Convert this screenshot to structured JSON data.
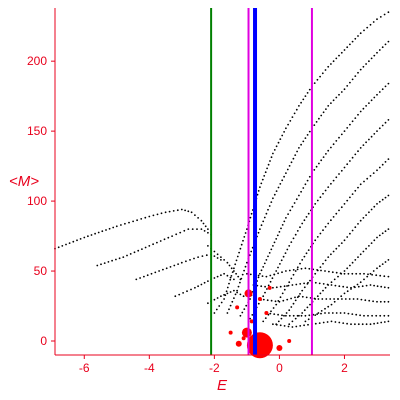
{
  "chart_data": {
    "type": "scatter",
    "xlabel": "E",
    "ylabel": "<M>",
    "xlim": [
      -6.9,
      3.4
    ],
    "ylim": [
      -10,
      238
    ],
    "x_ticks": [
      -6,
      -4,
      -2,
      0,
      2
    ],
    "y_ticks": [
      0,
      50,
      100,
      150,
      200
    ],
    "grid": false,
    "axis_color": "#e8001c",
    "point_color": "#000000",
    "marker_color": "#ff0000",
    "series": [
      {
        "x": [
          -6.9,
          -6.0,
          -5.0,
          -4.0,
          -3.5,
          -3.0,
          -2.7,
          -2.4,
          -2.2
        ],
        "y": [
          66,
          74,
          82,
          89,
          92,
          94,
          92,
          86,
          80
        ]
      },
      {
        "x": [
          -5.6,
          -4.8,
          -4.0,
          -3.3,
          -2.8,
          -2.4,
          -2.1
        ],
        "y": [
          54,
          60,
          68,
          75,
          80,
          80,
          76
        ]
      },
      {
        "x": [
          -4.4,
          -3.7,
          -3.0,
          -2.5,
          -2.1,
          -1.8
        ],
        "y": [
          44,
          50,
          56,
          60,
          62,
          58
        ]
      },
      {
        "x": [
          -3.2,
          -2.6,
          -2.1,
          -1.7,
          -1.4
        ],
        "y": [
          32,
          38,
          44,
          48,
          44
        ]
      },
      {
        "x": [
          -2.2,
          -1.8,
          -1.4,
          -1.1
        ],
        "y": [
          27,
          32,
          36,
          32
        ]
      },
      {
        "x": [
          -2.0,
          -1.7,
          -1.4,
          -1.0,
          -0.6,
          -0.2,
          0.2,
          0.6,
          1.0,
          1.5,
          2.0,
          2.5,
          3.0,
          3.35
        ],
        "y": [
          20,
          30,
          52,
          80,
          110,
          134,
          152,
          168,
          182,
          196,
          208,
          220,
          230,
          235
        ]
      },
      {
        "x": [
          -1.6,
          -1.3,
          -1.0,
          -0.6,
          -0.2,
          0.2,
          0.6,
          1.0,
          1.5,
          2.0,
          2.5,
          3.0,
          3.35
        ],
        "y": [
          20,
          36,
          56,
          80,
          102,
          120,
          138,
          152,
          168,
          180,
          194,
          206,
          214
        ]
      },
      {
        "x": [
          -1.2,
          -0.9,
          -0.6,
          -0.2,
          0.2,
          0.6,
          1.0,
          1.5,
          2.0,
          2.5,
          3.0,
          3.35
        ],
        "y": [
          18,
          30,
          48,
          68,
          88,
          104,
          120,
          136,
          150,
          164,
          176,
          184
        ]
      },
      {
        "x": [
          -0.9,
          -0.5,
          -0.1,
          0.3,
          0.7,
          1.1,
          1.5,
          2.0,
          2.5,
          3.0,
          3.35
        ],
        "y": [
          16,
          32,
          50,
          68,
          84,
          98,
          110,
          124,
          138,
          150,
          158
        ]
      },
      {
        "x": [
          -0.5,
          -0.1,
          0.3,
          0.7,
          1.1,
          1.5,
          2.0,
          2.5,
          3.0,
          3.35
        ],
        "y": [
          14,
          26,
          42,
          58,
          72,
          84,
          98,
          112,
          122,
          130
        ]
      },
      {
        "x": [
          -0.1,
          0.3,
          0.7,
          1.1,
          1.5,
          2.0,
          2.5,
          3.0,
          3.35
        ],
        "y": [
          12,
          22,
          36,
          48,
          60,
          72,
          86,
          98,
          104
        ]
      },
      {
        "x": [
          0.3,
          0.7,
          1.1,
          1.5,
          2.0,
          2.5,
          3.0,
          3.35
        ],
        "y": [
          12,
          20,
          30,
          40,
          50,
          62,
          74,
          80
        ]
      },
      {
        "x": [
          0.8,
          1.2,
          1.6,
          2.0,
          2.5,
          3.0,
          3.35
        ],
        "y": [
          14,
          20,
          26,
          34,
          42,
          52,
          58
        ]
      },
      {
        "x": [
          -1.0,
          -0.4,
          0.2,
          0.8,
          1.4,
          2.0,
          2.6,
          3.35
        ],
        "y": [
          48,
          46,
          50,
          52,
          50,
          48,
          48,
          46
        ]
      },
      {
        "x": [
          -0.8,
          -0.2,
          0.4,
          1.0,
          1.6,
          2.2,
          2.8,
          3.35
        ],
        "y": [
          40,
          38,
          40,
          42,
          40,
          38,
          40,
          38
        ]
      },
      {
        "x": [
          -0.6,
          0.0,
          0.6,
          1.2,
          1.8,
          2.4,
          3.0,
          3.35
        ],
        "y": [
          30,
          28,
          32,
          30,
          30,
          30,
          28,
          28
        ]
      },
      {
        "x": [
          -0.4,
          0.2,
          0.8,
          1.4,
          2.0,
          2.6,
          3.35
        ],
        "y": [
          20,
          18,
          18,
          20,
          20,
          18,
          18
        ]
      },
      {
        "x": [
          -0.2,
          0.4,
          1.0,
          1.6,
          2.2,
          2.8,
          3.35
        ],
        "y": [
          12,
          10,
          12,
          14,
          12,
          12,
          14
        ]
      },
      {
        "x": [
          -2.2,
          -2.0,
          -1.8,
          -1.6,
          -1.4,
          -1.2
        ],
        "y": [
          68,
          64,
          60,
          56,
          50,
          44
        ]
      }
    ],
    "markers": [
      {
        "x": -0.6,
        "y": -3,
        "r": 13
      },
      {
        "x": -1.0,
        "y": 6,
        "r": 5
      },
      {
        "x": -0.95,
        "y": 34,
        "r": 4
      },
      {
        "x": 0.0,
        "y": -5,
        "r": 3
      },
      {
        "x": -1.25,
        "y": -2,
        "r": 3
      },
      {
        "x": -1.1,
        "y": 2,
        "r": 2
      },
      {
        "x": -0.85,
        "y": 14,
        "r": 2
      },
      {
        "x": -0.6,
        "y": 30,
        "r": 2
      },
      {
        "x": -0.3,
        "y": 38,
        "r": 2
      },
      {
        "x": -0.4,
        "y": 20,
        "r": 2
      },
      {
        "x": -1.5,
        "y": 6,
        "r": 2
      },
      {
        "x": 0.3,
        "y": 0,
        "r": 2
      },
      {
        "x": -1.3,
        "y": 24,
        "r": 2
      }
    ],
    "vlines": [
      {
        "x": -2.1,
        "color": "#008000",
        "width": 2
      },
      {
        "x": -0.95,
        "color": "#e000e0",
        "width": 2
      },
      {
        "x": -0.75,
        "color": "#0000ff",
        "width": 4
      },
      {
        "x": 1.0,
        "color": "#e000e0",
        "width": 2
      }
    ]
  }
}
